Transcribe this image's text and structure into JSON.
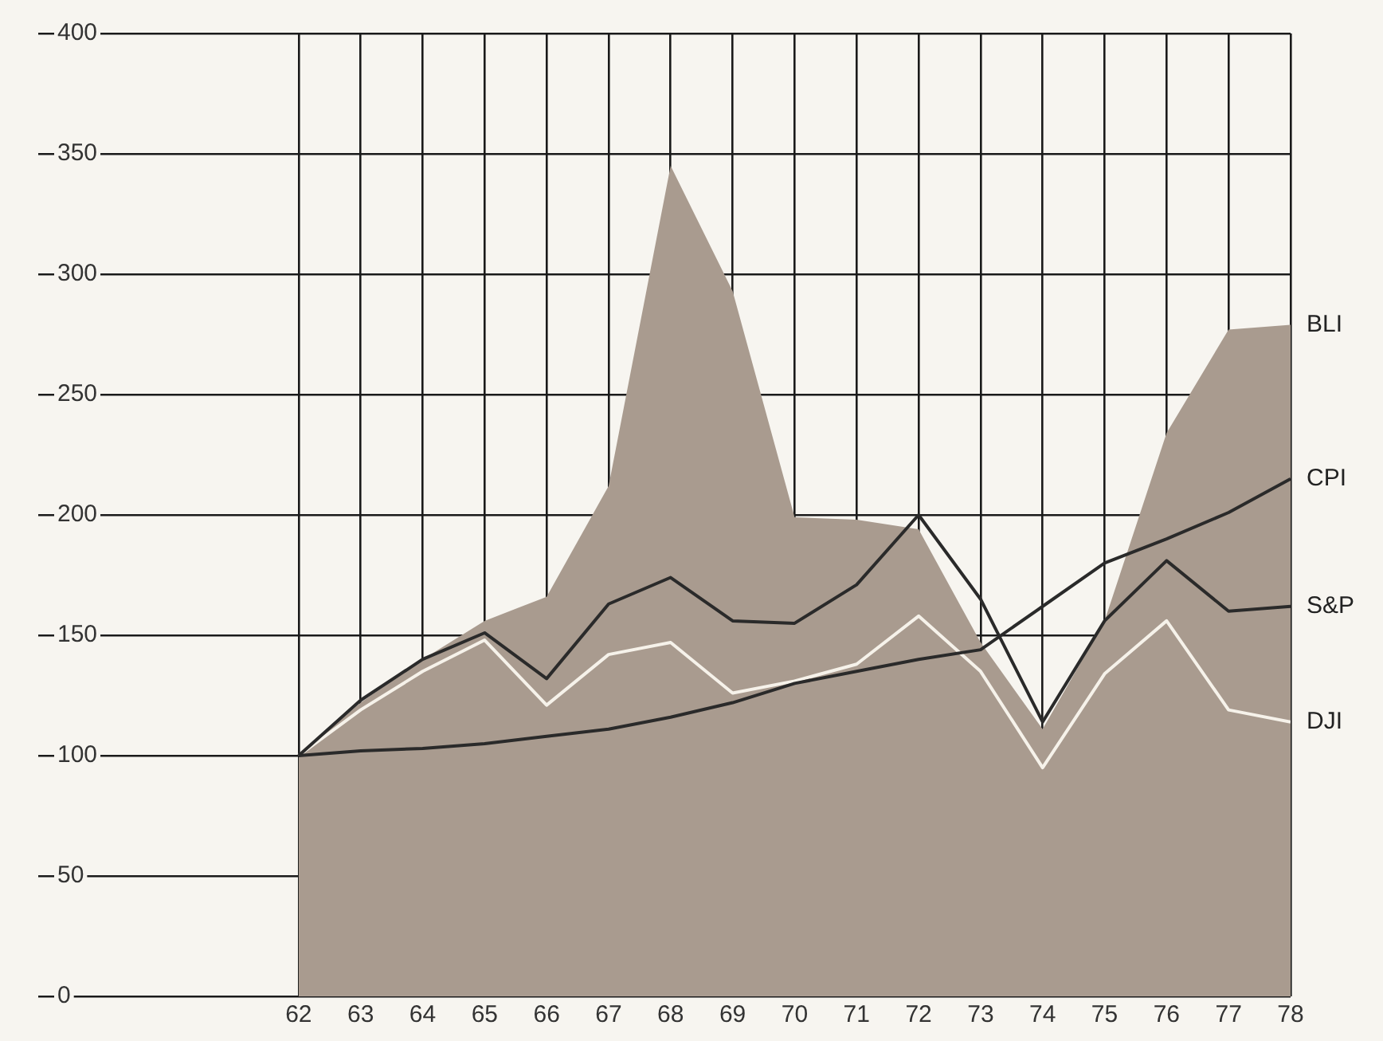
{
  "chart_data": {
    "type": "line",
    "x": [
      62,
      63,
      64,
      65,
      66,
      67,
      68,
      69,
      70,
      71,
      72,
      73,
      74,
      75,
      76,
      77,
      78
    ],
    "xlim": [
      57.8,
      78
    ],
    "xticks": [
      62,
      63,
      64,
      65,
      66,
      67,
      68,
      69,
      70,
      71,
      72,
      73,
      74,
      75,
      76,
      77,
      78
    ],
    "ylim": [
      0,
      400
    ],
    "yticks": [
      0,
      50,
      100,
      150,
      200,
      250,
      300,
      350,
      400
    ],
    "grid": true,
    "legend": false,
    "marker": "none",
    "line_style": "solid",
    "series": [
      {
        "name": "BLI",
        "type": "area",
        "color": "#a99b8f",
        "values": [
          100,
          122,
          140,
          156,
          166,
          212,
          345,
          293,
          199,
          198,
          194,
          147,
          111,
          156,
          234,
          277,
          279
        ]
      },
      {
        "name": "CPI",
        "type": "line",
        "color": "#2a2a2a",
        "values": [
          100,
          102,
          103,
          105,
          108,
          111,
          116,
          122,
          130,
          135,
          140,
          144,
          162,
          180,
          190,
          201,
          215
        ]
      },
      {
        "name": "S&P",
        "type": "line",
        "color": "#2a2a2a",
        "values": [
          100,
          123,
          140,
          151,
          132,
          163,
          174,
          156,
          155,
          171,
          200,
          165,
          114,
          156,
          181,
          160,
          162
        ]
      },
      {
        "name": "DJI",
        "type": "line",
        "color": "#f6f2ea",
        "values": [
          100,
          119,
          135,
          148,
          121,
          142,
          147,
          126,
          131,
          138,
          158,
          135,
          95,
          134,
          156,
          119,
          114
        ]
      }
    ]
  }
}
